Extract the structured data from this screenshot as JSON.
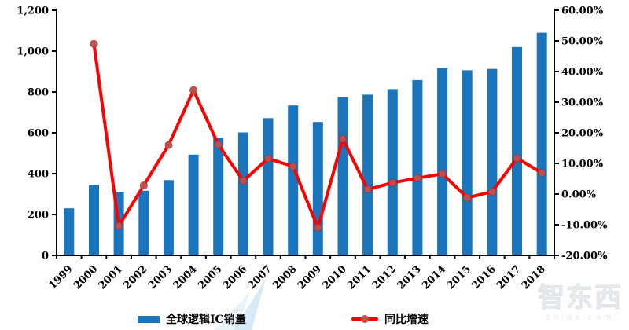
{
  "chart_data": {
    "type": "combo-bar-line",
    "title": "",
    "categories": [
      "1999",
      "2000",
      "2001",
      "2002",
      "2003",
      "2004",
      "2005",
      "2006",
      "2007",
      "2008",
      "2009",
      "2010",
      "2011",
      "2012",
      "2013",
      "2014",
      "2015",
      "2016",
      "2017",
      "2018"
    ],
    "series": [
      {
        "name": "全球逻辑IC销量",
        "type": "bar",
        "axis": "left",
        "color": "#1B75BC",
        "values": [
          230,
          345,
          310,
          316,
          368,
          493,
          575,
          602,
          672,
          734,
          653,
          775,
          787,
          814,
          858,
          917,
          906,
          913,
          1020,
          1090
        ]
      },
      {
        "name": "同比增速",
        "type": "line",
        "axis": "right",
        "color": "#FE0000",
        "marker_color": "#C0504D",
        "marker_edge": "#953735",
        "values": [
          null,
          49.0,
          -10.4,
          2.8,
          16.0,
          33.9,
          16.1,
          4.3,
          11.6,
          9.0,
          -11.0,
          18.0,
          1.5,
          3.7,
          5.2,
          6.6,
          -1.2,
          0.8,
          11.7,
          6.9
        ]
      }
    ],
    "left_axis": {
      "min": 0,
      "max": 1200,
      "step": 200,
      "tick_labels": [
        "0",
        "200",
        "400",
        "600",
        "800",
        "1,000",
        "1,200"
      ]
    },
    "right_axis": {
      "min": -20,
      "max": 60,
      "step": 10,
      "tick_labels": [
        "-20.00%",
        "-10.00%",
        "0.00%",
        "10.00%",
        "20.00%",
        "30.00%",
        "40.00%",
        "50.00%",
        "60.00%"
      ]
    },
    "grid": "off",
    "legend_position": "bottom",
    "axis_color": "#000000"
  },
  "legend": {
    "bar_label": "全球逻辑IC销量",
    "line_label": "同比增速"
  },
  "watermark": {
    "logo_text": "智东西",
    "domain_text": "zhidx.com",
    "swoosh_color": "#b5d7ee"
  }
}
